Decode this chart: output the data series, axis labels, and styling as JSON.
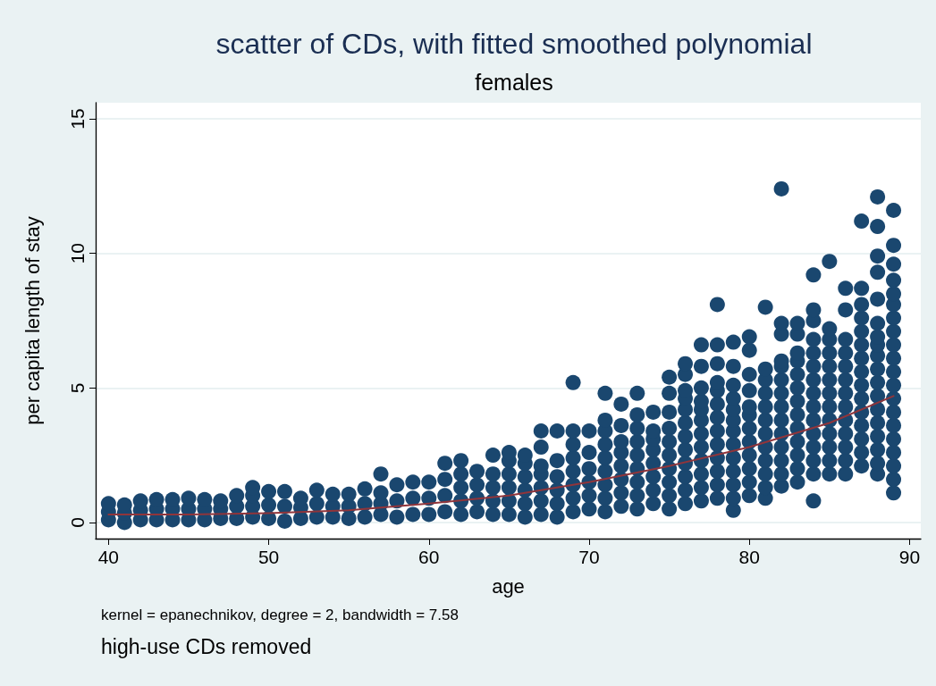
{
  "chart_data": {
    "type": "scatter",
    "title": "scatter of CDs, with fitted smoothed polynomial",
    "subtitle": "females",
    "xlabel": "age",
    "ylabel": "per capita length of stay",
    "annotations": [
      "kernel = epanechnikov, degree = 2, bandwidth = 7.58",
      "high-use CDs removed"
    ],
    "xlim": [
      39.2,
      90.7
    ],
    "xticks": [
      40,
      50,
      60,
      70,
      80,
      90
    ],
    "ylim": [
      -0.6,
      15.6
    ],
    "yticks": [
      0,
      5,
      10,
      15
    ],
    "grid": "y",
    "marker": "circle",
    "series": [
      {
        "color": "#1a476f",
        "x": [
          40,
          40,
          40,
          41,
          41,
          41,
          42,
          42,
          42,
          43,
          43,
          43,
          44,
          44,
          44,
          45,
          45,
          45,
          46,
          46,
          46,
          47,
          47,
          47,
          48,
          48,
          48,
          49,
          49,
          49,
          49,
          50,
          50,
          50,
          51,
          51,
          51,
          52,
          52,
          52,
          53,
          53,
          53,
          54,
          54,
          54,
          55,
          55,
          55,
          56,
          56,
          56,
          57,
          57,
          57,
          57,
          58,
          58,
          58,
          59,
          59,
          59,
          60,
          60,
          60,
          61,
          61,
          61,
          61,
          62,
          62,
          62,
          62,
          62,
          63,
          63,
          63,
          63,
          64,
          64,
          64,
          64,
          64,
          65,
          65,
          65,
          65,
          65,
          65,
          66,
          66,
          66,
          66,
          66,
          66,
          67,
          67,
          67,
          67,
          67,
          67,
          67,
          68,
          68,
          68,
          68,
          68,
          68,
          69,
          69,
          69,
          69,
          69,
          69,
          69,
          69,
          70,
          70,
          70,
          70,
          70,
          70,
          71,
          71,
          71,
          71,
          71,
          71,
          71,
          71,
          71,
          72,
          72,
          72,
          72,
          72,
          72,
          72,
          72,
          73,
          73,
          73,
          73,
          73,
          73,
          73,
          73,
          73,
          74,
          74,
          74,
          74,
          74,
          74,
          74,
          74,
          75,
          75,
          75,
          75,
          75,
          75,
          75,
          75,
          75,
          75,
          76,
          76,
          76,
          76,
          76,
          76,
          76,
          76,
          76,
          76,
          76,
          76,
          77,
          77,
          77,
          77,
          77,
          77,
          77,
          77,
          77,
          77,
          77,
          77,
          78,
          78,
          78,
          78,
          78,
          78,
          78,
          78,
          78,
          78,
          78,
          78,
          78,
          79,
          79,
          79,
          79,
          79,
          79,
          79,
          79,
          79,
          79,
          79,
          79,
          79,
          80,
          80,
          80,
          80,
          80,
          80,
          80,
          80,
          80,
          80,
          80,
          80,
          81,
          81,
          81,
          81,
          81,
          81,
          81,
          81,
          81,
          81,
          81,
          81,
          82,
          82,
          82,
          82,
          82,
          82,
          82,
          82,
          82,
          82,
          82,
          82,
          82,
          82,
          83,
          83,
          83,
          83,
          83,
          83,
          83,
          83,
          83,
          83,
          83,
          83,
          83,
          84,
          84,
          84,
          84,
          84,
          84,
          84,
          84,
          84,
          84,
          84,
          84,
          84,
          84,
          84,
          85,
          85,
          85,
          85,
          85,
          85,
          85,
          85,
          85,
          85,
          85,
          85,
          85,
          86,
          86,
          86,
          86,
          86,
          86,
          86,
          86,
          86,
          86,
          86,
          86,
          86,
          87,
          87,
          87,
          87,
          87,
          87,
          87,
          87,
          87,
          87,
          87,
          87,
          87,
          87,
          87,
          88,
          88,
          88,
          88,
          88,
          88,
          88,
          88,
          88,
          88,
          88,
          88,
          88,
          88,
          88,
          88,
          88,
          88,
          89,
          89,
          89,
          89,
          89,
          89,
          89,
          89,
          89,
          89,
          89,
          89,
          89,
          89,
          89,
          89,
          89,
          89,
          89,
          89
        ],
        "values": [
          0.1,
          0.4,
          0.7,
          0.0,
          0.35,
          0.65,
          0.1,
          0.45,
          0.8,
          0.1,
          0.5,
          0.85,
          0.1,
          0.5,
          0.85,
          0.1,
          0.5,
          0.9,
          0.1,
          0.5,
          0.85,
          0.15,
          0.5,
          0.8,
          0.15,
          0.6,
          1.0,
          0.2,
          0.6,
          1.0,
          1.3,
          0.15,
          0.65,
          1.15,
          0.05,
          0.6,
          1.15,
          0.15,
          0.55,
          0.9,
          0.2,
          0.7,
          1.2,
          0.2,
          0.6,
          1.05,
          0.15,
          0.6,
          1.05,
          0.2,
          0.7,
          1.25,
          0.3,
          0.7,
          1.1,
          1.8,
          0.2,
          0.8,
          1.4,
          0.3,
          0.9,
          1.5,
          0.3,
          0.9,
          1.5,
          0.4,
          1.0,
          1.6,
          2.2,
          0.3,
          0.8,
          1.3,
          1.8,
          2.3,
          0.4,
          0.9,
          1.4,
          1.9,
          0.3,
          0.8,
          1.3,
          1.8,
          2.5,
          0.3,
          0.8,
          1.3,
          1.8,
          2.3,
          2.6,
          0.2,
          0.7,
          1.2,
          1.7,
          2.2,
          2.5,
          0.3,
          0.8,
          1.3,
          1.8,
          2.1,
          2.8,
          3.4,
          0.2,
          0.7,
          1.2,
          1.7,
          2.3,
          3.4,
          0.4,
          0.9,
          1.4,
          1.9,
          2.4,
          2.9,
          3.4,
          5.2,
          0.5,
          1.0,
          1.5,
          2.0,
          2.6,
          3.4,
          0.4,
          0.9,
          1.4,
          1.9,
          2.4,
          2.9,
          3.4,
          3.8,
          4.8,
          0.6,
          1.1,
          1.6,
          2.1,
          2.6,
          3.0,
          3.6,
          4.4,
          0.5,
          1.0,
          1.5,
          2.0,
          2.5,
          3.0,
          3.5,
          4.0,
          4.8,
          0.7,
          1.2,
          1.7,
          2.2,
          2.7,
          3.1,
          3.4,
          4.1,
          0.5,
          1.0,
          1.5,
          2.0,
          2.5,
          3.0,
          3.5,
          4.1,
          4.8,
          5.4,
          0.7,
          1.2,
          1.7,
          2.2,
          2.7,
          3.2,
          3.7,
          4.2,
          4.6,
          4.9,
          5.5,
          5.9,
          0.8,
          1.3,
          1.8,
          2.3,
          2.8,
          3.3,
          3.8,
          4.2,
          4.5,
          5.0,
          5.8,
          6.6,
          0.9,
          1.4,
          1.9,
          2.4,
          2.9,
          3.4,
          3.9,
          4.4,
          4.9,
          5.2,
          5.9,
          6.6,
          8.1,
          0.45,
          0.9,
          1.4,
          1.9,
          2.4,
          2.9,
          3.4,
          3.8,
          4.2,
          4.6,
          5.1,
          5.8,
          6.7,
          1.0,
          1.5,
          2.0,
          2.5,
          3.0,
          3.5,
          4.0,
          4.3,
          4.9,
          5.5,
          6.4,
          6.9,
          0.9,
          1.3,
          1.8,
          2.3,
          2.8,
          3.3,
          3.8,
          4.3,
          4.8,
          5.3,
          5.7,
          8.0,
          1.35,
          1.8,
          2.3,
          2.8,
          3.3,
          3.8,
          4.3,
          4.8,
          5.3,
          5.8,
          6.0,
          7.0,
          7.4,
          12.4,
          1.5,
          2.0,
          2.5,
          3.0,
          3.5,
          4.0,
          4.5,
          5.0,
          5.5,
          6.0,
          6.3,
          7.0,
          7.4,
          0.8,
          1.8,
          2.3,
          2.8,
          3.3,
          3.8,
          4.3,
          4.8,
          5.3,
          5.8,
          6.3,
          6.8,
          7.5,
          7.9,
          9.2,
          1.8,
          2.3,
          2.8,
          3.3,
          3.8,
          4.3,
          4.8,
          5.3,
          5.8,
          6.3,
          6.8,
          7.2,
          9.7,
          1.8,
          2.3,
          2.8,
          3.3,
          3.8,
          4.3,
          4.8,
          5.3,
          5.8,
          6.3,
          6.8,
          7.9,
          8.7,
          2.1,
          2.6,
          3.1,
          3.6,
          4.1,
          4.6,
          5.1,
          5.6,
          6.1,
          6.6,
          7.1,
          7.6,
          8.1,
          8.7,
          11.2,
          1.8,
          2.2,
          2.7,
          3.2,
          3.7,
          4.2,
          4.7,
          5.2,
          5.7,
          6.2,
          6.6,
          6.9,
          7.4,
          8.3,
          9.3,
          9.9,
          11.0,
          12.1,
          1.1,
          1.6,
          2.1,
          2.6,
          3.1,
          3.6,
          4.1,
          4.6,
          5.1,
          5.6,
          6.1,
          6.6,
          7.1,
          7.6,
          8.1,
          8.5,
          9.0,
          9.6,
          10.3,
          11.6
        ]
      },
      {
        "type": "line",
        "color": "#90353b",
        "marker": "none",
        "x": [
          40,
          45,
          50,
          55,
          60,
          65,
          70,
          75,
          80,
          85,
          89
        ],
        "values": [
          0.3,
          0.3,
          0.35,
          0.45,
          0.7,
          1.0,
          1.5,
          2.1,
          2.8,
          3.7,
          4.7
        ]
      }
    ]
  }
}
